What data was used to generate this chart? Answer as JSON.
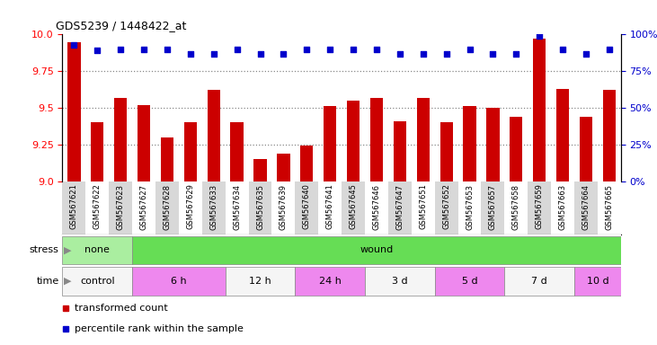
{
  "title": "GDS5239 / 1448422_at",
  "samples": [
    "GSM567621",
    "GSM567622",
    "GSM567623",
    "GSM567627",
    "GSM567628",
    "GSM567629",
    "GSM567633",
    "GSM567634",
    "GSM567635",
    "GSM567639",
    "GSM567640",
    "GSM567641",
    "GSM567645",
    "GSM567646",
    "GSM567647",
    "GSM567651",
    "GSM567652",
    "GSM567653",
    "GSM567657",
    "GSM567658",
    "GSM567659",
    "GSM567663",
    "GSM567664",
    "GSM567665"
  ],
  "bar_values": [
    9.95,
    9.4,
    9.57,
    9.52,
    9.3,
    9.4,
    9.62,
    9.4,
    9.15,
    9.19,
    9.24,
    9.51,
    9.55,
    9.57,
    9.41,
    9.57,
    9.4,
    9.51,
    9.5,
    9.44,
    9.97,
    9.63,
    9.44,
    9.62
  ],
  "percentile_values": [
    93,
    89,
    90,
    90,
    90,
    87,
    87,
    90,
    87,
    87,
    90,
    90,
    90,
    90,
    87,
    87,
    87,
    90,
    87,
    87,
    99,
    90,
    87,
    90
  ],
  "bar_color": "#cc0000",
  "dot_color": "#0000cc",
  "ylim_left": [
    9.0,
    10.0
  ],
  "ylim_right": [
    0,
    100
  ],
  "yticks_left": [
    9.0,
    9.25,
    9.5,
    9.75,
    10.0
  ],
  "yticks_right": [
    0,
    25,
    50,
    75,
    100
  ],
  "grid_dotted_at": [
    9.25,
    9.5,
    9.75
  ],
  "stress_groups": [
    {
      "label": "none",
      "start": 0,
      "end": 3,
      "color": "#aaeea0"
    },
    {
      "label": "wound",
      "start": 3,
      "end": 24,
      "color": "#66dd55"
    }
  ],
  "time_groups": [
    {
      "label": "control",
      "start": 0,
      "end": 3,
      "color": "#f5f5f5"
    },
    {
      "label": "6 h",
      "start": 3,
      "end": 7,
      "color": "#ee88ee"
    },
    {
      "label": "12 h",
      "start": 7,
      "end": 10,
      "color": "#f5f5f5"
    },
    {
      "label": "24 h",
      "start": 10,
      "end": 13,
      "color": "#ee88ee"
    },
    {
      "label": "3 d",
      "start": 13,
      "end": 16,
      "color": "#f5f5f5"
    },
    {
      "label": "5 d",
      "start": 16,
      "end": 19,
      "color": "#ee88ee"
    },
    {
      "label": "7 d",
      "start": 19,
      "end": 22,
      "color": "#f5f5f5"
    },
    {
      "label": "10 d",
      "start": 22,
      "end": 24,
      "color": "#ee88ee"
    }
  ],
  "legend_labels": [
    "transformed count",
    "percentile rank within the sample"
  ],
  "legend_colors": [
    "#cc0000",
    "#0000cc"
  ],
  "xtick_band_color": "#d8d8d8",
  "background_color": "#ffffff"
}
